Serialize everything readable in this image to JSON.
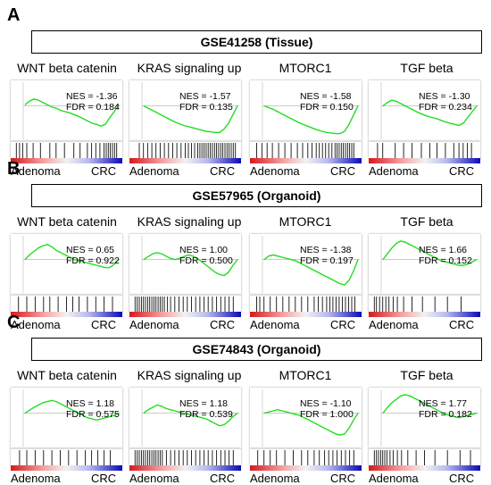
{
  "labels": {
    "left": "Adenoma",
    "right": "CRC",
    "stat_nes": "NES = ",
    "stat_fdr": "FDR = "
  },
  "colors": {
    "curve": "#22dd22",
    "red": "#d7191c",
    "blue": "#0a0ab8"
  },
  "panels": [
    {
      "letter": "A",
      "dataset": "GSE41258 (Tissue)",
      "plots": [
        {
          "title": "WNT beta catenin",
          "nes": "-1.36",
          "fdr": "0.184",
          "curve": [
            0.02,
            0.08,
            0.12,
            0.1,
            0.06,
            0.02,
            -0.02,
            -0.04,
            -0.08,
            -0.1,
            -0.12,
            -0.15,
            -0.18,
            -0.22,
            -0.26,
            -0.3,
            -0.32,
            -0.35,
            -0.32,
            -0.2,
            -0.1,
            0.02
          ],
          "hits": [
            0.02,
            0.05,
            0.08,
            0.12,
            0.18,
            0.25,
            0.34,
            0.4,
            0.48,
            0.57,
            0.63,
            0.7,
            0.74,
            0.78,
            0.82,
            0.86,
            0.88,
            0.9,
            0.92,
            0.94,
            0.96,
            0.98
          ]
        },
        {
          "title": "KRAS signaling up",
          "nes": "-1.57",
          "fdr": "0.135",
          "curve": [
            0.0,
            -0.04,
            -0.08,
            -0.12,
            -0.16,
            -0.2,
            -0.24,
            -0.28,
            -0.31,
            -0.34,
            -0.36,
            -0.38,
            -0.4,
            -0.42,
            -0.44,
            -0.45,
            -0.46,
            -0.46,
            -0.4,
            -0.3,
            -0.15,
            0.0
          ],
          "hits": [
            0.06,
            0.1,
            0.14,
            0.18,
            0.22,
            0.26,
            0.3,
            0.34,
            0.38,
            0.42,
            0.46,
            0.5,
            0.53,
            0.56,
            0.59,
            0.62,
            0.64,
            0.66,
            0.68,
            0.7,
            0.72,
            0.74,
            0.76,
            0.78,
            0.8,
            0.82,
            0.84,
            0.86,
            0.88,
            0.9,
            0.92,
            0.94,
            0.96,
            0.98
          ]
        },
        {
          "title": "MTORC1",
          "nes": "-1.58",
          "fdr": "0.150",
          "curve": [
            0.0,
            -0.03,
            -0.06,
            -0.1,
            -0.14,
            -0.18,
            -0.22,
            -0.26,
            -0.3,
            -0.33,
            -0.36,
            -0.39,
            -0.42,
            -0.44,
            -0.46,
            -0.47,
            -0.48,
            -0.48,
            -0.44,
            -0.32,
            -0.16,
            0.0
          ],
          "hits": [
            0.03,
            0.08,
            0.13,
            0.18,
            0.24,
            0.3,
            0.36,
            0.42,
            0.47,
            0.52,
            0.56,
            0.6,
            0.63,
            0.66,
            0.69,
            0.72,
            0.75,
            0.78,
            0.8,
            0.82,
            0.84,
            0.86,
            0.88,
            0.9,
            0.92,
            0.94,
            0.96
          ]
        },
        {
          "title": "TGF beta",
          "nes": "-1.30",
          "fdr": "0.234",
          "curve": [
            0.0,
            0.06,
            0.1,
            0.08,
            0.04,
            0.0,
            -0.04,
            -0.08,
            -0.12,
            -0.15,
            -0.18,
            -0.2,
            -0.22,
            -0.25,
            -0.28,
            -0.3,
            -0.32,
            -0.34,
            -0.3,
            -0.2,
            -0.1,
            0.0
          ],
          "hits": [
            0.05,
            0.1,
            0.22,
            0.3,
            0.38,
            0.47,
            0.55,
            0.62,
            0.7,
            0.78,
            0.83,
            0.87,
            0.91,
            0.95
          ]
        }
      ]
    },
    {
      "letter": "B",
      "dataset": "GSE57965 (Organoid)",
      "plots": [
        {
          "title": "WNT beta catenin",
          "nes": "0.65",
          "fdr": "0.922",
          "curve": [
            0.0,
            0.08,
            0.14,
            0.2,
            0.24,
            0.26,
            0.22,
            0.16,
            0.12,
            0.08,
            0.04,
            0.0,
            -0.02,
            -0.04,
            -0.06,
            -0.08,
            -0.1,
            -0.12,
            -0.14,
            -0.14,
            -0.08,
            0.0
          ],
          "hits": [
            0.04,
            0.12,
            0.2,
            0.28,
            0.34,
            0.42,
            0.5,
            0.56,
            0.62,
            0.7,
            0.78,
            0.86,
            0.94
          ]
        },
        {
          "title": "KRAS signaling up",
          "nes": "1.00",
          "fdr": "0.500",
          "curve": [
            0.0,
            0.05,
            0.1,
            0.12,
            0.1,
            0.06,
            0.02,
            0.0,
            0.02,
            0.05,
            0.08,
            0.06,
            0.02,
            -0.04,
            -0.1,
            -0.16,
            -0.22,
            -0.26,
            -0.28,
            -0.22,
            -0.1,
            0.0
          ],
          "hits": [
            0.02,
            0.04,
            0.06,
            0.08,
            0.1,
            0.12,
            0.14,
            0.16,
            0.18,
            0.2,
            0.22,
            0.24,
            0.26,
            0.28,
            0.3,
            0.33,
            0.36,
            0.4,
            0.44,
            0.48,
            0.52,
            0.56,
            0.6,
            0.64,
            0.68,
            0.72,
            0.76,
            0.8,
            0.84,
            0.88,
            0.92,
            0.96
          ]
        },
        {
          "title": "MTORC1",
          "nes": "-1.38",
          "fdr": "0.197",
          "curve": [
            0.0,
            0.06,
            0.08,
            0.06,
            0.04,
            0.02,
            0.0,
            -0.02,
            -0.06,
            -0.1,
            -0.14,
            -0.18,
            -0.22,
            -0.26,
            -0.3,
            -0.34,
            -0.38,
            -0.42,
            -0.44,
            -0.36,
            -0.2,
            0.0
          ],
          "hits": [
            0.03,
            0.06,
            0.1,
            0.16,
            0.22,
            0.28,
            0.34,
            0.4,
            0.46,
            0.52,
            0.58,
            0.62,
            0.66,
            0.7,
            0.73,
            0.76,
            0.79,
            0.82,
            0.85,
            0.88,
            0.91,
            0.94,
            0.97
          ]
        },
        {
          "title": "TGF beta",
          "nes": "1.66",
          "fdr": "0.152",
          "curve": [
            0.0,
            0.1,
            0.2,
            0.28,
            0.32,
            0.3,
            0.26,
            0.22,
            0.18,
            0.14,
            0.1,
            0.06,
            0.02,
            -0.02,
            -0.04,
            -0.06,
            -0.08,
            -0.1,
            -0.1,
            -0.08,
            -0.04,
            0.0
          ],
          "hits": [
            0.02,
            0.04,
            0.07,
            0.1,
            0.13,
            0.16,
            0.2,
            0.24,
            0.3,
            0.38,
            0.48,
            0.6,
            0.72,
            0.85
          ]
        }
      ]
    },
    {
      "letter": "C",
      "dataset": "GSE74843 (Organoid)",
      "plots": [
        {
          "title": "WNT beta catenin",
          "nes": "1.18",
          "fdr": "0.575",
          "curve": [
            0.0,
            0.05,
            0.1,
            0.14,
            0.18,
            0.2,
            0.22,
            0.2,
            0.16,
            0.12,
            0.08,
            0.04,
            0.0,
            -0.04,
            -0.08,
            -0.1,
            -0.12,
            -0.1,
            -0.08,
            -0.06,
            -0.04,
            0.0
          ],
          "hits": [
            0.05,
            0.12,
            0.2,
            0.28,
            0.36,
            0.44,
            0.52,
            0.6,
            0.68,
            0.74,
            0.8,
            0.86,
            0.92
          ]
        },
        {
          "title": "KRAS signaling up",
          "nes": "1.18",
          "fdr": "0.539",
          "curve": [
            0.0,
            0.06,
            0.1,
            0.14,
            0.12,
            0.08,
            0.06,
            0.04,
            0.02,
            0.0,
            -0.02,
            -0.04,
            -0.06,
            -0.08,
            -0.1,
            -0.14,
            -0.18,
            -0.22,
            -0.2,
            -0.14,
            -0.06,
            0.0
          ],
          "hits": [
            0.02,
            0.04,
            0.06,
            0.08,
            0.1,
            0.12,
            0.14,
            0.16,
            0.18,
            0.2,
            0.22,
            0.24,
            0.26,
            0.28,
            0.32,
            0.36,
            0.4,
            0.44,
            0.48,
            0.52,
            0.56,
            0.6,
            0.64,
            0.68,
            0.72,
            0.76,
            0.8,
            0.84,
            0.88,
            0.92,
            0.96
          ]
        },
        {
          "title": "MTORC1",
          "nes": "-1.10",
          "fdr": "1.000",
          "curve": [
            0.0,
            0.02,
            0.04,
            0.06,
            0.04,
            0.02,
            0.0,
            -0.02,
            -0.04,
            -0.08,
            -0.12,
            -0.16,
            -0.2,
            -0.24,
            -0.28,
            -0.32,
            -0.36,
            -0.38,
            -0.36,
            -0.26,
            -0.12,
            0.0
          ],
          "hits": [
            0.04,
            0.1,
            0.16,
            0.22,
            0.3,
            0.38,
            0.46,
            0.52,
            0.58,
            0.63,
            0.68,
            0.72,
            0.76,
            0.8,
            0.84,
            0.88,
            0.92,
            0.96
          ]
        },
        {
          "title": "TGF beta",
          "nes": "1.77",
          "fdr": "0.182",
          "curve": [
            0.0,
            0.1,
            0.18,
            0.24,
            0.3,
            0.32,
            0.3,
            0.26,
            0.22,
            0.18,
            0.14,
            0.1,
            0.06,
            0.02,
            -0.02,
            -0.04,
            -0.06,
            -0.08,
            -0.06,
            -0.04,
            -0.02,
            0.0
          ],
          "hits": [
            0.02,
            0.04,
            0.06,
            0.08,
            0.1,
            0.12,
            0.14,
            0.17,
            0.2,
            0.24,
            0.28,
            0.34,
            0.42,
            0.5,
            0.6,
            0.72,
            0.84,
            0.94
          ]
        }
      ]
    }
  ]
}
